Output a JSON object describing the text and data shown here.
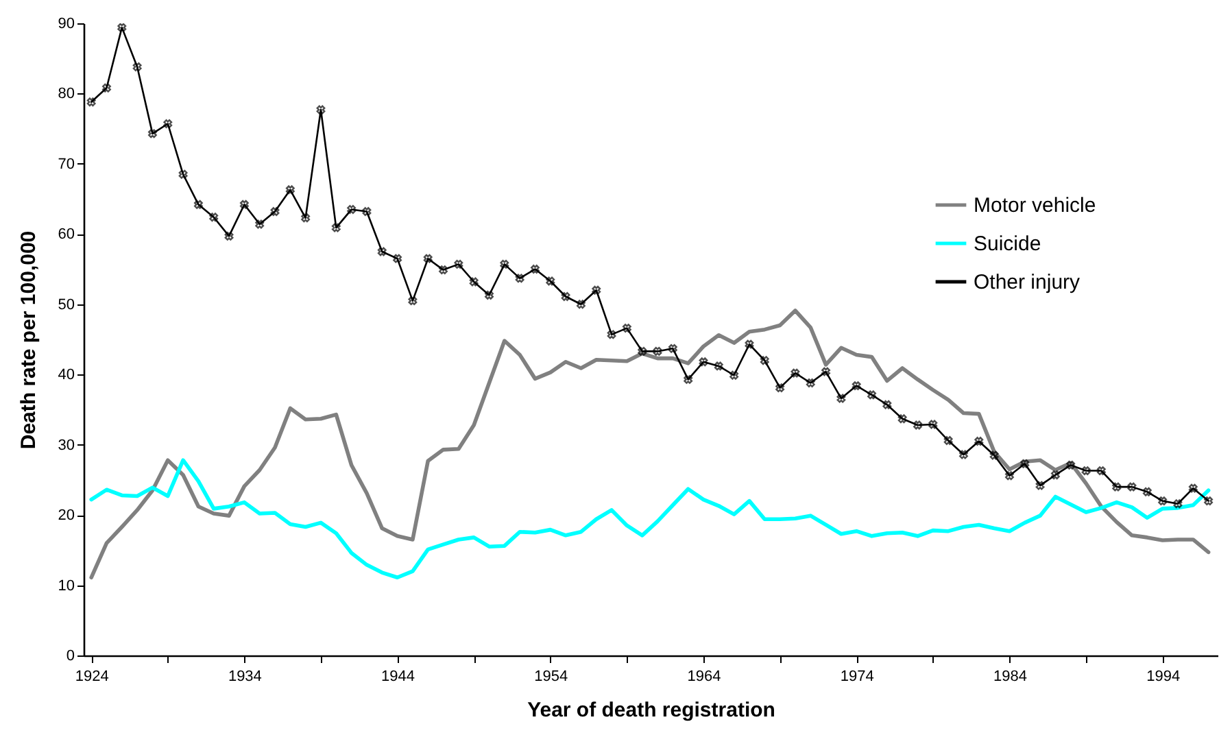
{
  "chart_data": {
    "type": "line",
    "xlabel": "Year of death registration",
    "ylabel": "Death rate per 100,000",
    "x": [
      1924,
      1925,
      1926,
      1927,
      1928,
      1929,
      1930,
      1931,
      1932,
      1933,
      1934,
      1935,
      1936,
      1937,
      1938,
      1939,
      1940,
      1941,
      1942,
      1943,
      1944,
      1945,
      1946,
      1947,
      1948,
      1949,
      1950,
      1951,
      1952,
      1953,
      1954,
      1955,
      1956,
      1957,
      1958,
      1959,
      1960,
      1961,
      1962,
      1963,
      1964,
      1965,
      1966,
      1967,
      1968,
      1969,
      1970,
      1971,
      1972,
      1973,
      1974,
      1975,
      1976,
      1977,
      1978,
      1979,
      1980,
      1981,
      1982,
      1983,
      1984,
      1985,
      1986,
      1987,
      1988,
      1989,
      1990,
      1991,
      1992,
      1993,
      1994,
      1995,
      1996,
      1997
    ],
    "series": [
      {
        "name": "Motor vehicle",
        "color": "#808080",
        "marker": "none",
        "values": [
          11.1,
          16.0,
          18.3,
          20.7,
          23.5,
          27.8,
          25.7,
          21.2,
          20.2,
          19.9,
          24.1,
          26.4,
          29.6,
          35.2,
          33.6,
          33.7,
          34.3,
          27.1,
          23.1,
          18.1,
          17.0,
          16.5,
          27.7,
          29.3,
          29.4,
          32.8,
          38.8,
          44.8,
          42.8,
          39.4,
          40.3,
          41.8,
          40.9,
          42.1,
          42.0,
          41.9,
          43.0,
          42.3,
          42.3,
          41.6,
          44.0,
          45.6,
          44.5,
          46.1,
          46.4,
          47.0,
          49.1,
          46.7,
          41.4,
          43.8,
          42.8,
          42.5,
          39.1,
          40.9,
          39.3,
          37.8,
          36.4,
          34.5,
          34.4,
          29.0,
          26.5,
          27.6,
          27.8,
          26.4,
          27.4,
          24.5,
          21.2,
          19.0,
          17.1,
          16.8,
          16.4,
          16.5,
          16.5,
          14.7
        ]
      },
      {
        "name": "Suicide",
        "color": "#00ffff",
        "marker": "none",
        "values": [
          22.2,
          23.6,
          22.8,
          22.7,
          23.9,
          22.7,
          27.8,
          24.8,
          20.9,
          21.2,
          21.8,
          20.2,
          20.3,
          18.7,
          18.3,
          18.9,
          17.4,
          14.6,
          12.9,
          11.8,
          11.1,
          12.0,
          15.1,
          15.8,
          16.5,
          16.8,
          15.5,
          15.6,
          17.6,
          17.5,
          17.9,
          17.1,
          17.6,
          19.4,
          20.7,
          18.5,
          17.1,
          19.1,
          21.4,
          23.7,
          22.2,
          21.3,
          20.1,
          22.0,
          19.4,
          19.4,
          19.5,
          19.9,
          18.6,
          17.3,
          17.7,
          17.0,
          17.4,
          17.5,
          17.0,
          17.8,
          17.7,
          18.3,
          18.6,
          18.1,
          17.7,
          18.9,
          19.9,
          22.6,
          21.5,
          20.4,
          21.0,
          21.8,
          21.1,
          19.6,
          20.9,
          21.0,
          21.4,
          23.5
        ]
      },
      {
        "name": "Other injury",
        "color": "#000000",
        "marker": "cross",
        "values": [
          78.8,
          80.8,
          89.4,
          83.8,
          74.3,
          75.7,
          68.5,
          64.2,
          62.4,
          59.7,
          64.2,
          61.4,
          63.2,
          66.3,
          62.3,
          77.7,
          60.9,
          63.5,
          63.2,
          57.5,
          56.5,
          50.5,
          56.5,
          54.9,
          55.7,
          53.2,
          51.3,
          55.7,
          53.7,
          55.0,
          53.3,
          51.1,
          50.0,
          52.0,
          45.7,
          46.6,
          43.3,
          43.3,
          43.7,
          39.3,
          41.8,
          41.2,
          39.9,
          44.3,
          42.0,
          38.1,
          40.2,
          38.8,
          40.4,
          36.6,
          38.4,
          37.1,
          35.7,
          33.7,
          32.8,
          32.9,
          30.6,
          28.6,
          30.5,
          28.5,
          25.6,
          27.3,
          24.2,
          25.7,
          27.1,
          26.3,
          26.3,
          24.0,
          24.0,
          23.3,
          22.0,
          21.6,
          23.8,
          22.0
        ]
      }
    ],
    "xlim": [
      1923.5,
      1997.6
    ],
    "xticks": [
      1924,
      {
        "value": 1929,
        "label": null
      },
      1934,
      {
        "value": 1939,
        "label": null
      },
      1944,
      {
        "value": 1949,
        "label": null
      },
      1954,
      {
        "value": 1959,
        "label": null
      },
      1964,
      {
        "value": 1969,
        "label": null
      },
      1974,
      {
        "value": 1979,
        "label": null
      },
      1984,
      {
        "value": 1989,
        "label": null
      },
      1994
    ],
    "ylim": [
      0,
      90
    ],
    "yticks": [
      0,
      10,
      20,
      30,
      40,
      50,
      60,
      70,
      80,
      90
    ],
    "grid": false,
    "legend": "top right"
  }
}
